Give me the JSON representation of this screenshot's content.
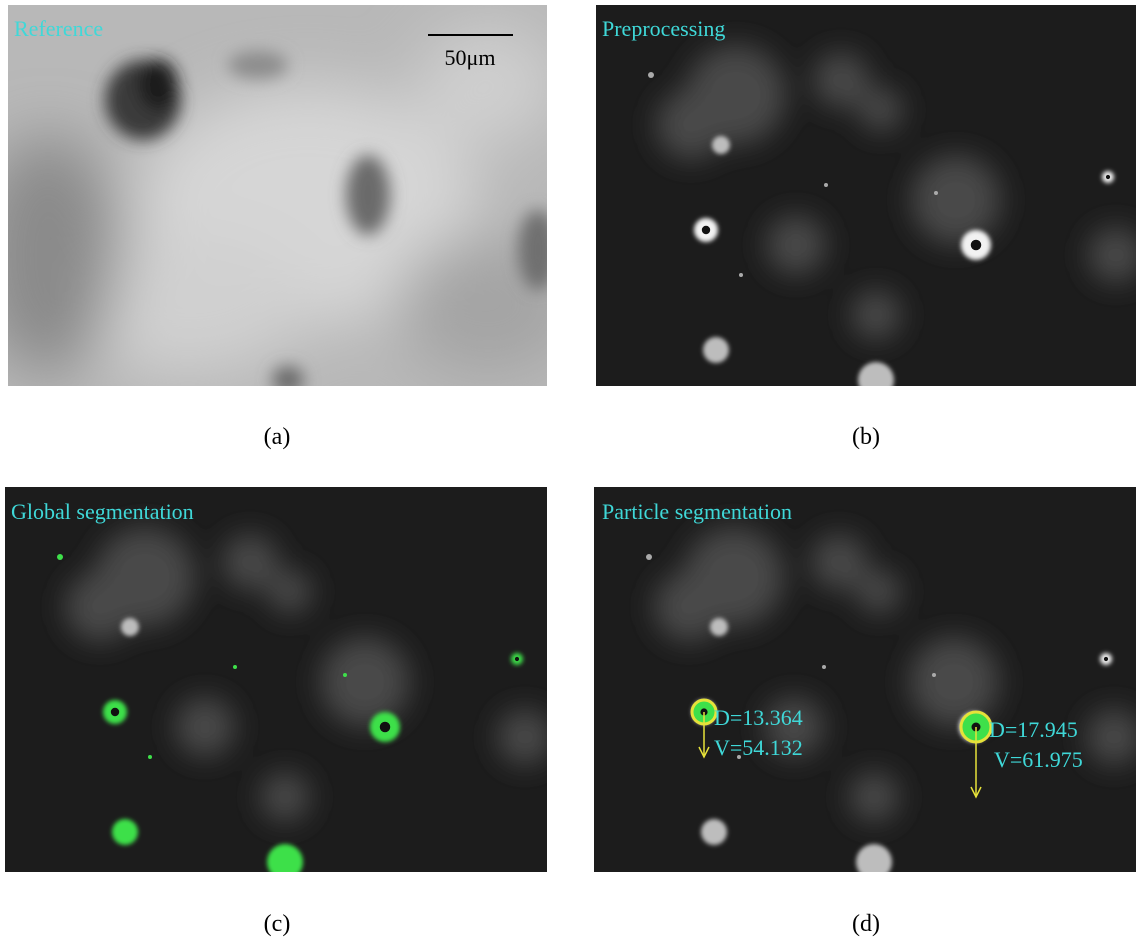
{
  "panels": [
    {
      "label": "Reference",
      "caption": "(a)",
      "scale_bar": "50μm"
    },
    {
      "label": "Preprocessing",
      "caption": "(b)"
    },
    {
      "label": "Global segmentation",
      "caption": "(c)"
    },
    {
      "label": "Particle segmentation",
      "caption": "(d)",
      "annotations": [
        {
          "d": "D=13.364",
          "v": "V=54.132"
        },
        {
          "d": "D=17.945",
          "v": "V=61.975"
        }
      ]
    }
  ]
}
